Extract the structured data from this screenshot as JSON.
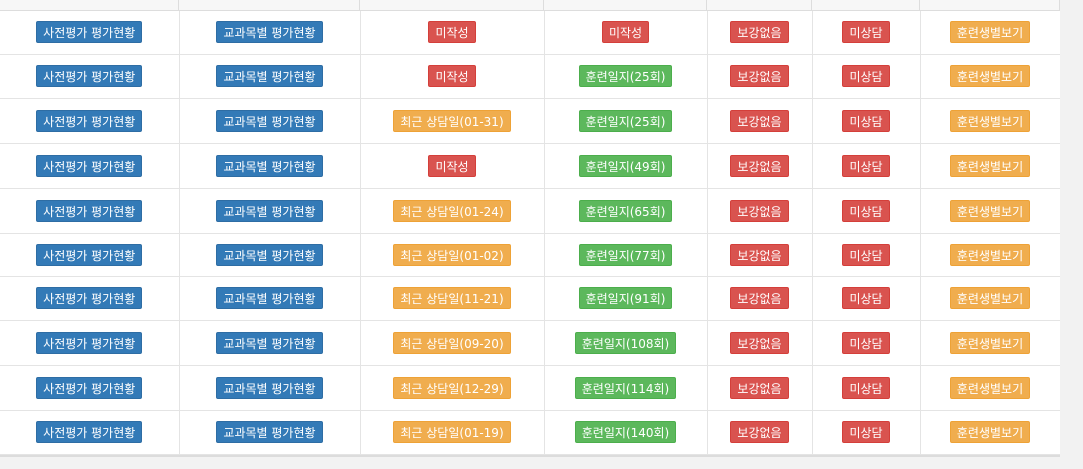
{
  "colors": {
    "blue": "#337ab7",
    "red": "#d9534f",
    "green": "#5cb85c",
    "orange": "#f0ad4e"
  },
  "rows": [
    {
      "pre_eval": "사전평가 평가현황",
      "subject_eval": "교과목별 평가현황",
      "consult": "미작성",
      "consult_color": "red",
      "journal": "미작성",
      "journal_color": "red",
      "makeup": "보강없음",
      "counsel": "미상담",
      "trainee_view": "훈련생별보기"
    },
    {
      "pre_eval": "사전평가 평가현황",
      "subject_eval": "교과목별 평가현황",
      "consult": "미작성",
      "consult_color": "red",
      "journal": "훈련일지(25회)",
      "journal_color": "green",
      "makeup": "보강없음",
      "counsel": "미상담",
      "trainee_view": "훈련생별보기"
    },
    {
      "pre_eval": "사전평가 평가현황",
      "subject_eval": "교과목별 평가현황",
      "consult": "최근 상담일(01-31)",
      "consult_color": "orange",
      "journal": "훈련일지(25회)",
      "journal_color": "green",
      "makeup": "보강없음",
      "counsel": "미상담",
      "trainee_view": "훈련생별보기"
    },
    {
      "pre_eval": "사전평가 평가현황",
      "subject_eval": "교과목별 평가현황",
      "consult": "미작성",
      "consult_color": "red",
      "journal": "훈련일지(49회)",
      "journal_color": "green",
      "makeup": "보강없음",
      "counsel": "미상담",
      "trainee_view": "훈련생별보기"
    },
    {
      "pre_eval": "사전평가 평가현황",
      "subject_eval": "교과목별 평가현황",
      "consult": "최근 상담일(01-24)",
      "consult_color": "orange",
      "journal": "훈련일지(65회)",
      "journal_color": "green",
      "makeup": "보강없음",
      "counsel": "미상담",
      "trainee_view": "훈련생별보기"
    },
    {
      "pre_eval": "사전평가 평가현황",
      "subject_eval": "교과목별 평가현황",
      "consult": "최근 상담일(01-02)",
      "consult_color": "orange",
      "journal": "훈련일지(77회)",
      "journal_color": "green",
      "makeup": "보강없음",
      "counsel": "미상담",
      "trainee_view": "훈련생별보기"
    },
    {
      "pre_eval": "사전평가 평가현황",
      "subject_eval": "교과목별 평가현황",
      "consult": "최근 상담일(11-21)",
      "consult_color": "orange",
      "journal": "훈련일지(91회)",
      "journal_color": "green",
      "makeup": "보강없음",
      "counsel": "미상담",
      "trainee_view": "훈련생별보기"
    },
    {
      "pre_eval": "사전평가 평가현황",
      "subject_eval": "교과목별 평가현황",
      "consult": "최근 상담일(09-20)",
      "consult_color": "orange",
      "journal": "훈련일지(108회)",
      "journal_color": "green",
      "makeup": "보강없음",
      "counsel": "미상담",
      "trainee_view": "훈련생별보기"
    },
    {
      "pre_eval": "사전평가 평가현황",
      "subject_eval": "교과목별 평가현황",
      "consult": "최근 상담일(12-29)",
      "consult_color": "orange",
      "journal": "훈련일지(114회)",
      "journal_color": "green",
      "makeup": "보강없음",
      "counsel": "미상담",
      "trainee_view": "훈련생별보기"
    },
    {
      "pre_eval": "사전평가 평가현황",
      "subject_eval": "교과목별 평가현황",
      "consult": "최근 상담일(01-19)",
      "consult_color": "orange",
      "journal": "훈련일지(140회)",
      "journal_color": "green",
      "makeup": "보강없음",
      "counsel": "미상담",
      "trainee_view": "훈련생별보기"
    }
  ]
}
